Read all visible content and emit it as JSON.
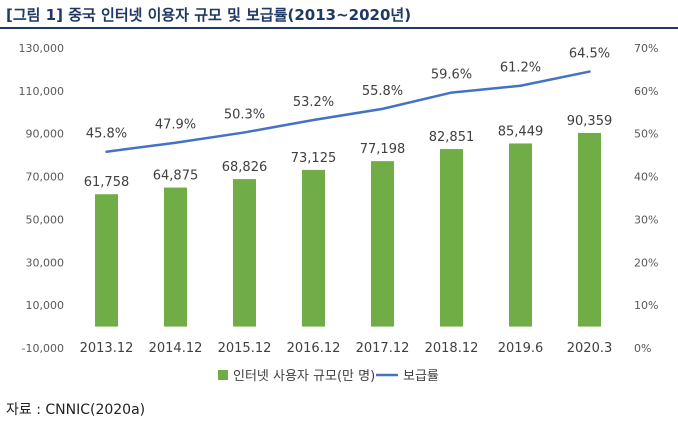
{
  "figure": {
    "title": "[그림 1] 중국 인터넷 이용자 규모 및 보급률(2013~2020년)",
    "source": "자료 : CNNIC(2020a)"
  },
  "colors": {
    "bar": "#70ad47",
    "line": "#4472c4",
    "title": "#1f3864"
  },
  "chart_data": {
    "type": "bar",
    "title": "중국 인터넷 이용자 규모 및 보급률(2013~2020년)",
    "categories": [
      "2013.12",
      "2014.12",
      "2015.12",
      "2016.12",
      "2017.12",
      "2018.12",
      "2019.6",
      "2020.3"
    ],
    "series": [
      {
        "name": "인터넷 사용자 규모(만 명)",
        "type": "bar",
        "axis": "left",
        "values": [
          61758,
          64875,
          68826,
          73125,
          77198,
          82851,
          85449,
          90359
        ],
        "labels": [
          "61,758",
          "64,875",
          "68,826",
          "73,125",
          "77,198",
          "82,851",
          "85,449",
          "90,359"
        ]
      },
      {
        "name": "보급률",
        "type": "line",
        "axis": "right",
        "values": [
          45.8,
          47.9,
          50.3,
          53.2,
          55.8,
          59.6,
          61.2,
          64.5
        ],
        "labels": [
          "45.8%",
          "47.9%",
          "50.3%",
          "53.2%",
          "55.8%",
          "59.6%",
          "61.2%",
          "64.5%"
        ]
      }
    ],
    "y_left": {
      "min": -10000,
      "max": 130000,
      "ticks": [
        -10000,
        10000,
        30000,
        50000,
        70000,
        90000,
        110000,
        130000
      ],
      "tick_labels": [
        "-10,000",
        "10,000",
        "30,000",
        "50,000",
        "70,000",
        "90,000",
        "110,000",
        "130,000"
      ]
    },
    "y_right": {
      "min": 0,
      "max": 70,
      "ticks": [
        0,
        10,
        20,
        30,
        40,
        50,
        60,
        70
      ],
      "tick_labels": [
        "0%",
        "10%",
        "20%",
        "30%",
        "40%",
        "50%",
        "60%",
        "70%"
      ]
    },
    "grid": false,
    "legend": {
      "position": "bottom"
    }
  }
}
